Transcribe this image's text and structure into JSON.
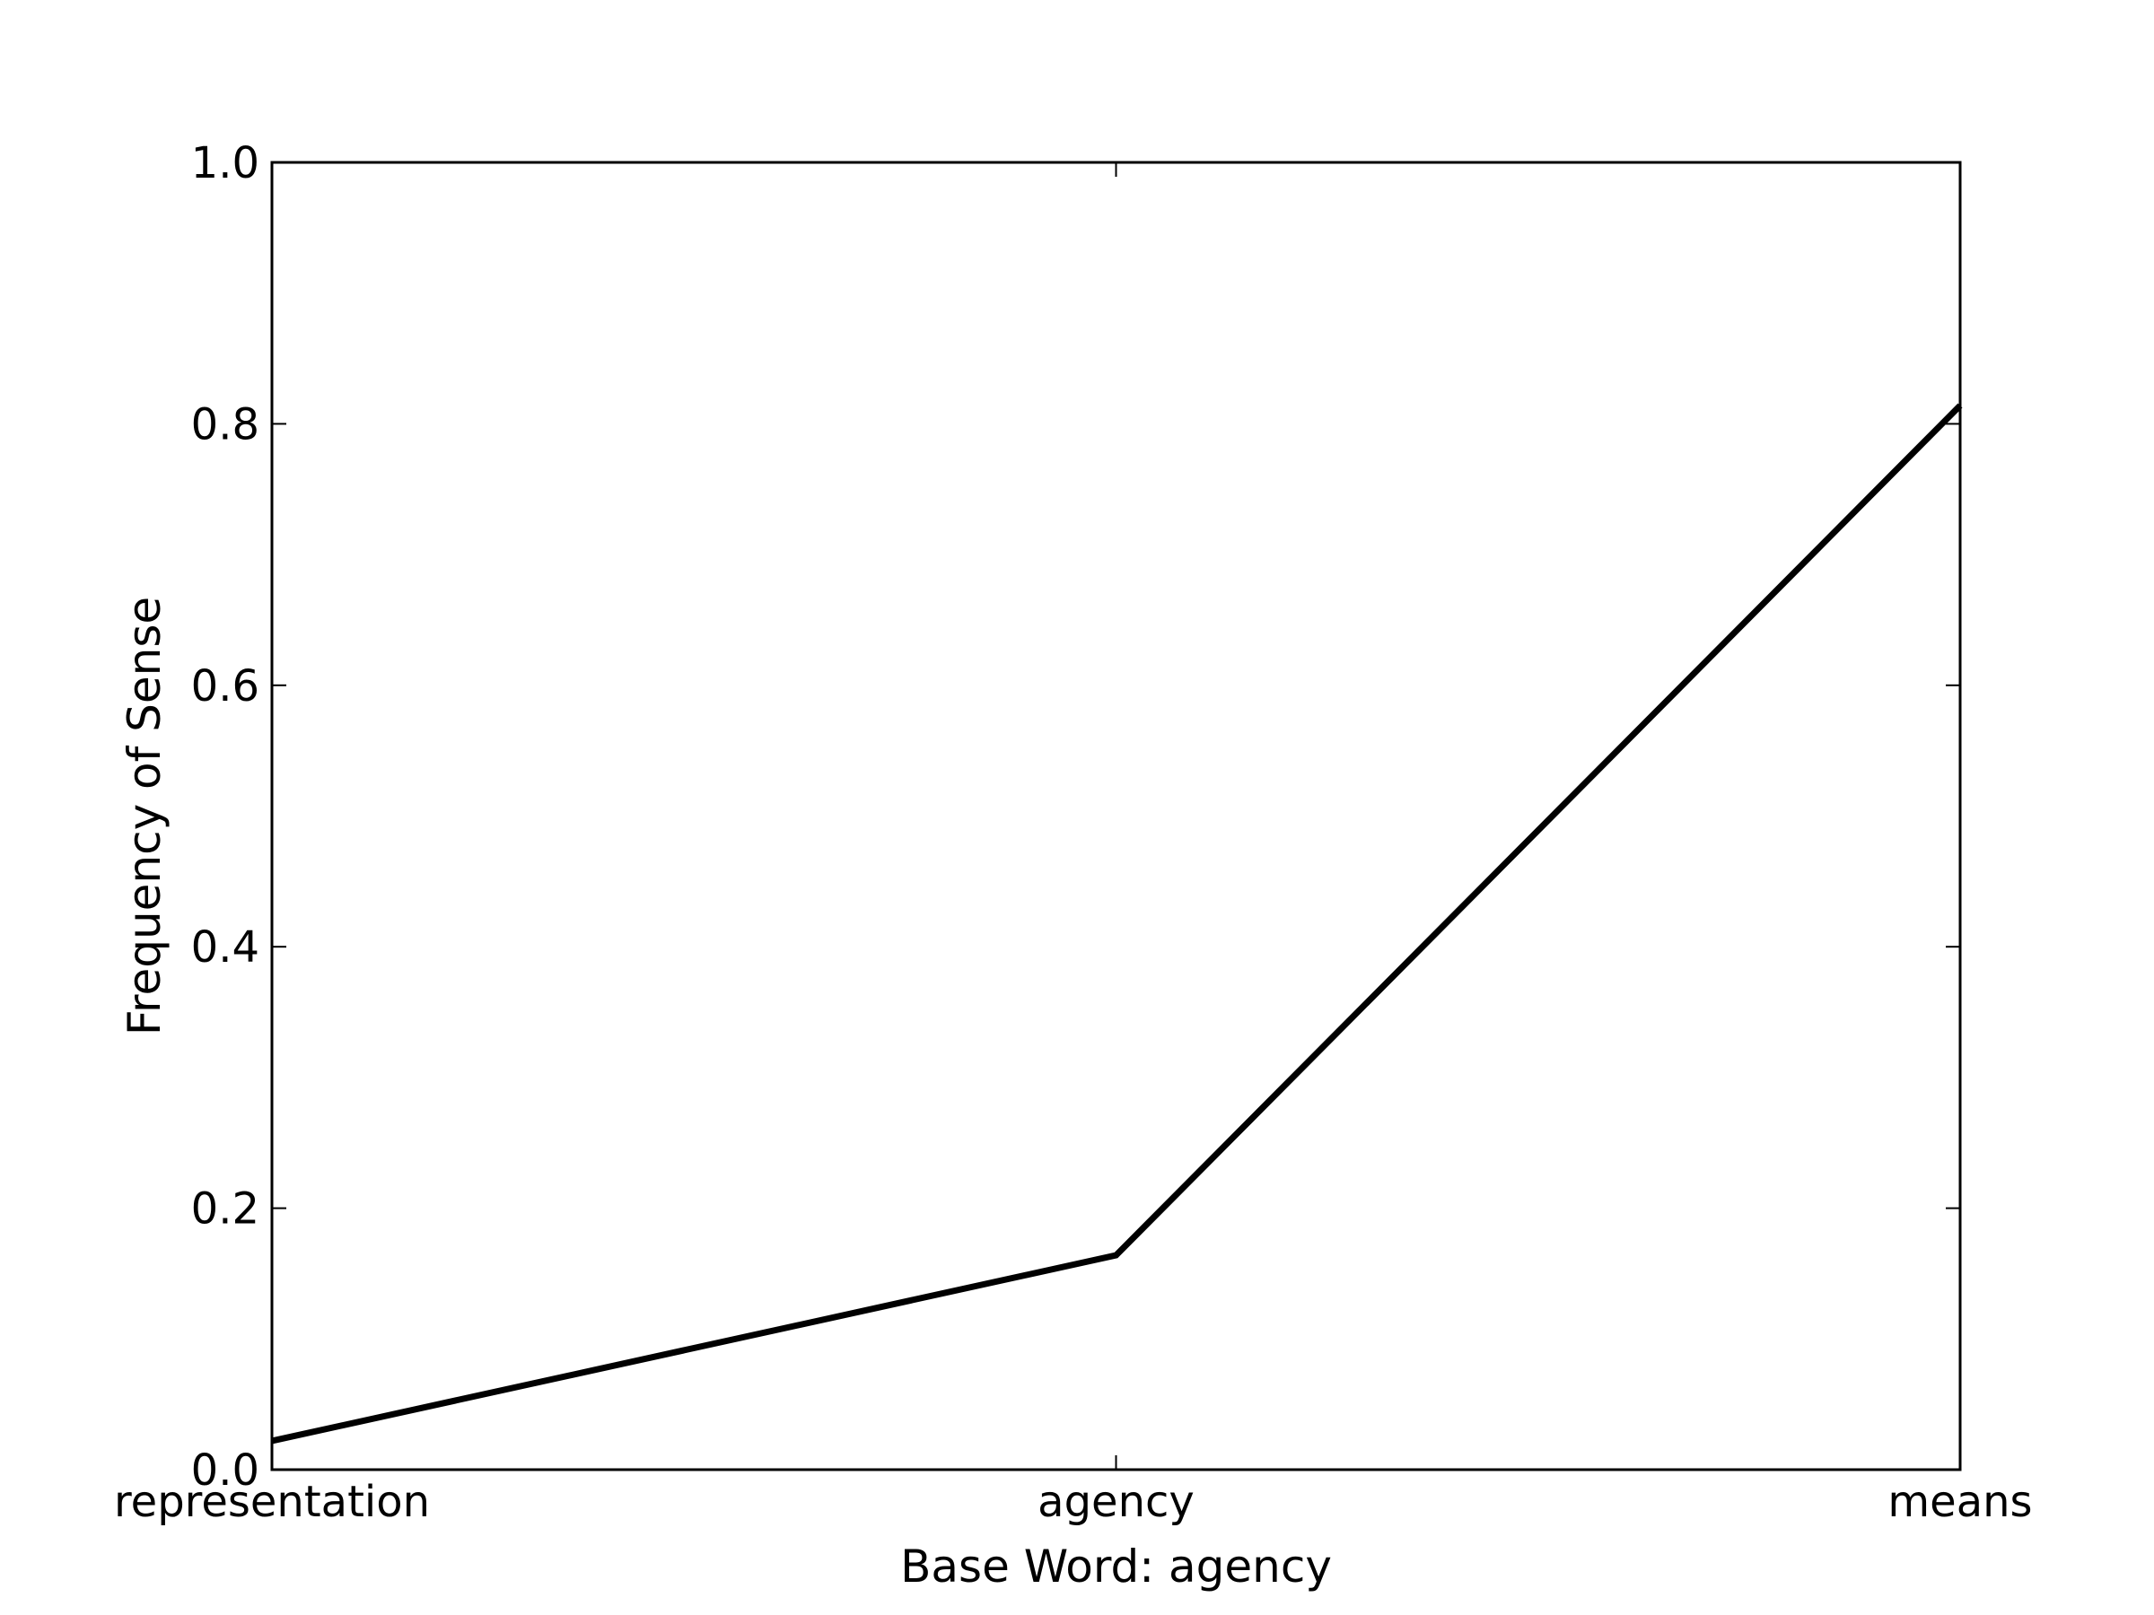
{
  "chart_data": {
    "type": "line",
    "title": "",
    "xlabel": "Base Word: agency",
    "ylabel": "Frequency of Sense",
    "categories": [
      "representation",
      "agency",
      "means"
    ],
    "series": [
      {
        "values": [
          0.022,
          0.164,
          0.814
        ]
      }
    ],
    "ylim": [
      0.0,
      1.0
    ],
    "yticks": [
      0.0,
      0.2,
      0.4,
      0.6,
      0.8,
      1.0
    ],
    "ytick_labels": [
      "0.0",
      "0.2",
      "0.4",
      "0.6",
      "0.8",
      "1.0"
    ],
    "grid": false,
    "legend": "none",
    "line_color": "#000000"
  }
}
